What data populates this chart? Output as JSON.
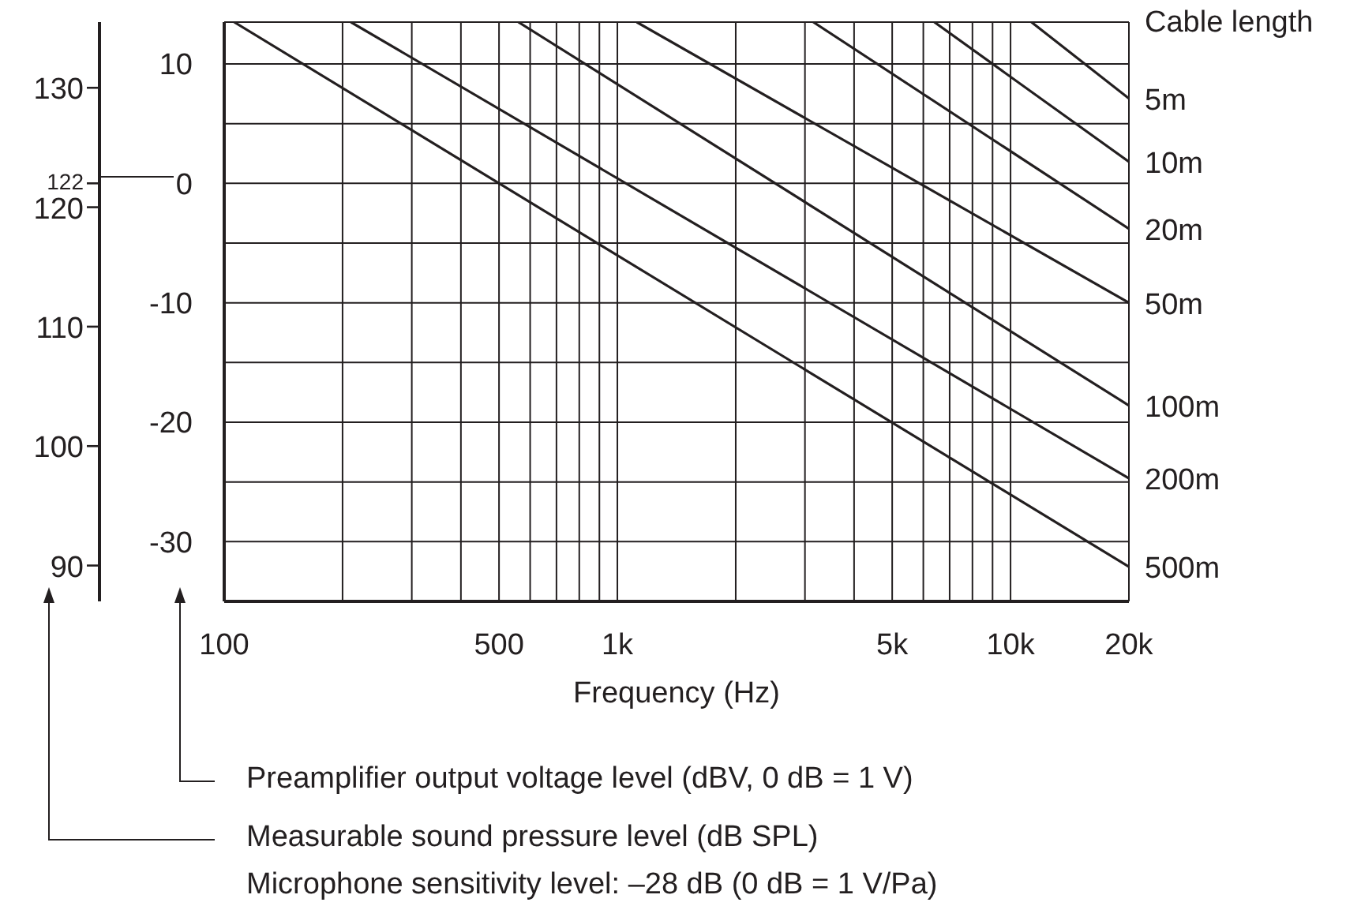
{
  "chart_data": {
    "type": "line",
    "xlabel": "Frequency (Hz)",
    "legend_title": "Cable length",
    "annotations": [
      "Preamplifier output voltage level (dBV, 0 dB = 1 V)",
      "Measurable sound pressure level (dB SPL)",
      "Microphone sensitivity level: –28 dB (0 dB = 1 V/Pa)"
    ],
    "log": "x",
    "grid": true,
    "xlim": [
      100,
      20000
    ],
    "xticks": [
      100,
      {
        "value": 200,
        "label": null
      },
      {
        "value": 300,
        "label": null
      },
      {
        "value": 400,
        "label": null
      },
      500,
      {
        "value": 600,
        "label": null
      },
      {
        "value": 700,
        "label": null
      },
      {
        "value": 800,
        "label": null
      },
      {
        "value": 900,
        "label": null
      },
      {
        "value": 1000,
        "label": "1k"
      },
      {
        "value": 2000,
        "label": null
      },
      {
        "value": 3000,
        "label": null
      },
      {
        "value": 4000,
        "label": null
      },
      {
        "value": 5000,
        "label": "5k"
      },
      {
        "value": 6000,
        "label": null
      },
      {
        "value": 7000,
        "label": null
      },
      {
        "value": 8000,
        "label": null
      },
      {
        "value": 9000,
        "label": null
      },
      {
        "value": 10000,
        "label": "10k"
      },
      {
        "value": 20000,
        "label": "20k"
      }
    ],
    "ylim": [
      -35,
      13.5
    ],
    "yticks": [
      -30,
      {
        "value": -25,
        "label": null
      },
      -20,
      {
        "value": -15,
        "label": null
      },
      -10,
      {
        "value": -5,
        "label": null
      },
      0,
      {
        "value": 5,
        "label": null
      },
      10
    ],
    "y2lim": [
      87,
      135.5
    ],
    "y2ticks": [
      90,
      100,
      110,
      120,
      122,
      130
    ],
    "series": [
      {
        "name": "5m",
        "color": "#231f20",
        "x": [
          11300,
          20000
        ],
        "values": [
          13.5,
          7.1
        ]
      },
      {
        "name": "10m",
        "color": "#231f20",
        "x": [
          6400,
          20000
        ],
        "values": [
          13.5,
          1.8
        ]
      },
      {
        "name": "20m",
        "color": "#231f20",
        "x": [
          3150,
          20000
        ],
        "values": [
          13.5,
          -3.8
        ]
      },
      {
        "name": "50m",
        "color": "#231f20",
        "x": [
          1120,
          20000
        ],
        "values": [
          13.5,
          -10
        ]
      },
      {
        "name": "100m",
        "color": "#231f20",
        "x": [
          560,
          20000
        ],
        "values": [
          13.5,
          -18.6
        ]
      },
      {
        "name": "200m",
        "color": "#231f20",
        "x": [
          210,
          20000
        ],
        "values": [
          13.5,
          -24.7
        ]
      },
      {
        "name": "500m",
        "color": "#231f20",
        "x": [
          106,
          20000
        ],
        "values": [
          13.5,
          -32.1
        ]
      }
    ]
  }
}
